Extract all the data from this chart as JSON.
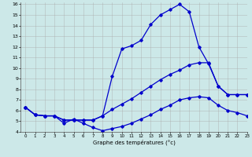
{
  "xlabel": "Graphe des températures (°c)",
  "bg_color": "#cce8e8",
  "line_color": "#0000cc",
  "grid_color": "#aaaaaa",
  "xlim": [
    -0.5,
    23
  ],
  "ylim": [
    4,
    16.2
  ],
  "yticks": [
    4,
    5,
    6,
    7,
    8,
    9,
    10,
    11,
    12,
    13,
    14,
    15,
    16
  ],
  "xticks": [
    0,
    1,
    2,
    3,
    4,
    5,
    6,
    7,
    8,
    9,
    10,
    11,
    12,
    13,
    14,
    15,
    16,
    17,
    18,
    19,
    20,
    21,
    22,
    23
  ],
  "line1_x": [
    0,
    1,
    2,
    3,
    4,
    5,
    6,
    7,
    8,
    9,
    10,
    11,
    12,
    13,
    14,
    15,
    16,
    17,
    18,
    19,
    20,
    21,
    22,
    23
  ],
  "line1_y": [
    6.3,
    5.6,
    5.5,
    5.5,
    5.1,
    5.1,
    5.1,
    5.1,
    5.5,
    9.2,
    11.8,
    12.1,
    12.6,
    14.1,
    15.0,
    15.5,
    16.0,
    15.3,
    12.0,
    10.4,
    8.3,
    7.5,
    7.5,
    7.5
  ],
  "line2_x": [
    0,
    1,
    2,
    3,
    4,
    5,
    6,
    7,
    8,
    9,
    10,
    11,
    12,
    13,
    14,
    15,
    16,
    17,
    18,
    19,
    20,
    21,
    22,
    23
  ],
  "line2_y": [
    6.3,
    5.6,
    5.5,
    5.5,
    5.1,
    5.1,
    5.1,
    5.1,
    5.5,
    6.1,
    6.6,
    7.1,
    7.7,
    8.3,
    8.9,
    9.4,
    9.8,
    10.3,
    10.5,
    10.5,
    8.3,
    7.5,
    7.5,
    7.5
  ],
  "line3_x": [
    0,
    1,
    2,
    3,
    4,
    5,
    6,
    7,
    8,
    9,
    10,
    11,
    12,
    13,
    14,
    15,
    16,
    17,
    18,
    19,
    20,
    21,
    22,
    23
  ],
  "line3_y": [
    6.3,
    5.6,
    5.5,
    5.5,
    4.8,
    5.2,
    4.8,
    4.4,
    4.1,
    4.3,
    4.5,
    4.8,
    5.2,
    5.6,
    6.1,
    6.5,
    7.0,
    7.2,
    7.3,
    7.2,
    6.5,
    6.0,
    5.8,
    5.5
  ],
  "figsize": [
    3.2,
    2.0
  ],
  "dpi": 100
}
